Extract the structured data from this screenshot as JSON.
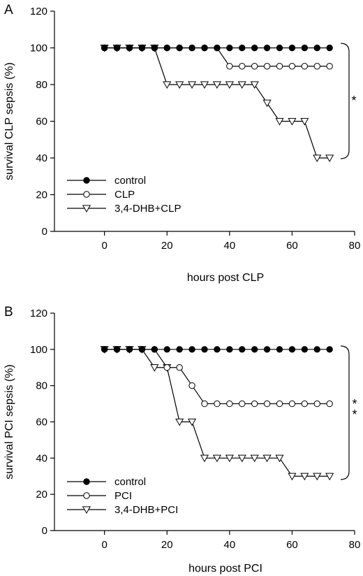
{
  "chart_data": [
    {
      "type": "line",
      "panel_label": "A",
      "title": "",
      "xlabel": "hours post CLP",
      "ylabel": "survival CLP sepsis (%)",
      "xlim": [
        -16,
        80
      ],
      "ylim": [
        0,
        120
      ],
      "xticks": [
        0,
        20,
        40,
        60,
        80
      ],
      "yticks": [
        0,
        20,
        40,
        60,
        80,
        100,
        120
      ],
      "grid": false,
      "legend_position": "bottom-left",
      "significance": "*",
      "series": [
        {
          "name": "control",
          "marker": "filled-circle",
          "x": [
            0,
            4,
            8,
            12,
            16,
            20,
            24,
            28,
            32,
            36,
            40,
            44,
            48,
            52,
            56,
            60,
            64,
            68,
            72
          ],
          "y": [
            100,
            100,
            100,
            100,
            100,
            100,
            100,
            100,
            100,
            100,
            100,
            100,
            100,
            100,
            100,
            100,
            100,
            100,
            100
          ]
        },
        {
          "name": "CLP",
          "marker": "open-circle",
          "x": [
            0,
            4,
            8,
            12,
            16,
            20,
            24,
            28,
            32,
            36,
            40,
            44,
            48,
            52,
            56,
            60,
            64,
            68,
            72
          ],
          "y": [
            100,
            100,
            100,
            100,
            100,
            100,
            100,
            100,
            100,
            100,
            90,
            90,
            90,
            90,
            90,
            90,
            90,
            90,
            90
          ]
        },
        {
          "name": "3,4-DHB+CLP",
          "marker": "open-triangle-down",
          "x": [
            0,
            4,
            8,
            12,
            16,
            20,
            24,
            28,
            32,
            36,
            40,
            44,
            48,
            52,
            56,
            60,
            64,
            68,
            72
          ],
          "y": [
            100,
            100,
            100,
            100,
            100,
            80,
            80,
            80,
            80,
            80,
            80,
            80,
            80,
            70,
            60,
            60,
            60,
            40,
            40
          ]
        }
      ]
    },
    {
      "type": "line",
      "panel_label": "B",
      "title": "",
      "xlabel": "hours post PCI",
      "ylabel": "survival PCI sepsis (%)",
      "xlim": [
        -16,
        80
      ],
      "ylim": [
        0,
        120
      ],
      "xticks": [
        0,
        20,
        40,
        60,
        80
      ],
      "yticks": [
        0,
        20,
        40,
        60,
        80,
        100,
        120
      ],
      "grid": false,
      "legend_position": "bottom-left",
      "significance": "**",
      "series": [
        {
          "name": "control",
          "marker": "filled-circle",
          "x": [
            0,
            4,
            8,
            12,
            16,
            20,
            24,
            28,
            32,
            36,
            40,
            44,
            48,
            52,
            56,
            60,
            64,
            68,
            72
          ],
          "y": [
            100,
            100,
            100,
            100,
            100,
            100,
            100,
            100,
            100,
            100,
            100,
            100,
            100,
            100,
            100,
            100,
            100,
            100,
            100
          ]
        },
        {
          "name": "PCI",
          "marker": "open-circle",
          "x": [
            0,
            4,
            8,
            12,
            16,
            20,
            24,
            28,
            32,
            36,
            40,
            44,
            48,
            52,
            56,
            60,
            64,
            68,
            72
          ],
          "y": [
            100,
            100,
            100,
            100,
            100,
            90,
            90,
            80,
            70,
            70,
            70,
            70,
            70,
            70,
            70,
            70,
            70,
            70,
            70
          ]
        },
        {
          "name": "3,4-DHB+PCI",
          "marker": "open-triangle-down",
          "x": [
            0,
            4,
            8,
            12,
            16,
            20,
            24,
            28,
            32,
            36,
            40,
            44,
            48,
            52,
            56,
            60,
            64,
            68,
            72
          ],
          "y": [
            100,
            100,
            100,
            100,
            90,
            90,
            60,
            60,
            40,
            40,
            40,
            40,
            40,
            40,
            40,
            30,
            30,
            30,
            30
          ]
        }
      ]
    }
  ]
}
